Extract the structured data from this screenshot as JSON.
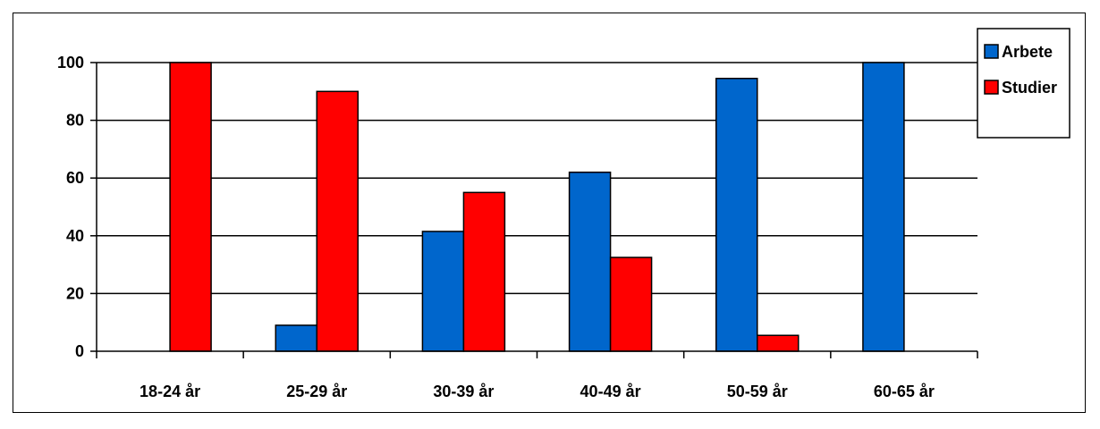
{
  "chart_data": {
    "type": "bar",
    "categories": [
      "18-24 år",
      "25-29 år",
      "30-39 år",
      "40-49 år",
      "50-59 år",
      "60-65 år"
    ],
    "series": [
      {
        "name": "Arbete",
        "color": "#0066cc",
        "values": [
          0,
          9,
          41.5,
          62,
          94.5,
          100
        ]
      },
      {
        "name": "Studier",
        "color": "#ff0000",
        "values": [
          100,
          90,
          55,
          32.5,
          5.5,
          0
        ]
      }
    ],
    "title": "",
    "xlabel": "",
    "ylabel": "",
    "ylim": [
      0,
      100
    ],
    "yticks": [
      0,
      20,
      40,
      60,
      80,
      100
    ],
    "grid": true,
    "legend_position": "top-right"
  }
}
